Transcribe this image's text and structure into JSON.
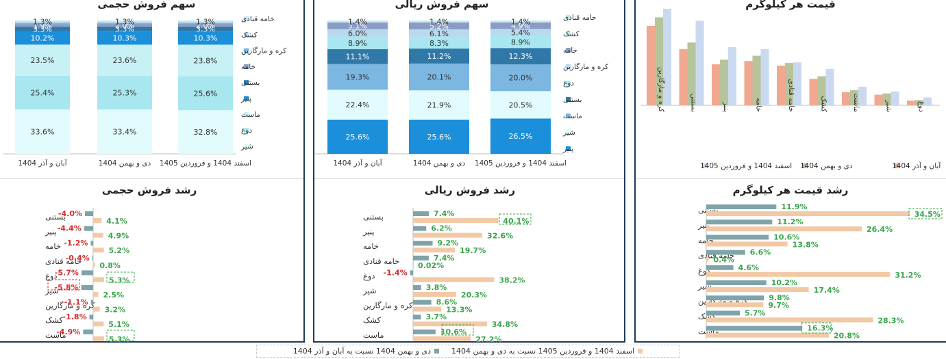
{
  "colors": {
    "leche": "#e2fbfd",
    "mast": "#c8f1f6",
    "doogh": "#a8e7f0",
    "panir": "#1b8fd9",
    "bastani": "#2f78a8",
    "khame": "#8a9cc6",
    "kare": "#7cb7e2",
    "kashk": "#b9d9ee",
    "ghanadi": "#c6e9ef",
    "growth_prev": "#7fa3a8",
    "growth_cur": "#f3c9a5",
    "neg_text": "#d32f2f",
    "pos_text": "#3aa54a",
    "price_a": "#f0a890",
    "price_b": "#b7c39a",
    "price_c": "#c9d9f0"
  },
  "chart_data": [
    {
      "id": "vol_share",
      "type": "bar",
      "stacked": true,
      "title": "سهم فروش حجمی",
      "categories": [
        "آبان و آذر 1404",
        "دی و بهمن 1404",
        "اسفند 1404 و فروردین 1405"
      ],
      "series": [
        {
          "name": "شیر",
          "color_key": "leche",
          "values": [
            33.6,
            33.4,
            32.8
          ]
        },
        {
          "name": "دوغ",
          "color_key": "doogh",
          "values": [
            25.4,
            25.3,
            25.6
          ]
        },
        {
          "name": "ماست",
          "color_key": "mast",
          "values": [
            23.5,
            23.6,
            23.8
          ]
        },
        {
          "name": "پنیر",
          "color_key": "panir",
          "values": [
            10.2,
            10.3,
            10.3
          ]
        },
        {
          "name": "بستنی",
          "color_key": "bastani",
          "values": [
            3.3,
            3.3,
            3.3
          ]
        },
        {
          "name": "خامه",
          "color_key": "khame",
          "values": [
            1.9,
            2.0,
            2.0
          ]
        },
        {
          "name": "کره و مارگارین",
          "color_key": "kare",
          "values": [
            1.0,
            0.8,
            0.8
          ]
        },
        {
          "name": "کشک",
          "color_key": "kashk",
          "values": [
            0.5,
            0.5,
            0.5
          ]
        },
        {
          "name": "خامه قنادی",
          "color_key": "ghanadi",
          "values": [
            1.3,
            1.3,
            1.3
          ]
        }
      ],
      "labels": [
        [
          "33.6%",
          "25.4%",
          "23.5%",
          "10.2%",
          "3.3%",
          "1.9%",
          "",
          "",
          "1.3%"
        ],
        [
          "33.4%",
          "25.3%",
          "23.6%",
          "10.3%",
          "3.3%",
          "2.0%",
          "",
          "",
          "1.3%"
        ],
        [
          "32.8%",
          "25.6%",
          "23.8%",
          "10.3%",
          "3.3%",
          "2.0%",
          "",
          "",
          "1.3%"
        ]
      ],
      "legend": [
        "خامه قنادی",
        "کشک",
        "کره و مارگارین",
        "خامه",
        "بستنی",
        "پنیر",
        "ماست",
        "دوغ",
        "شیر"
      ],
      "legend_position": "right"
    },
    {
      "id": "rial_share",
      "type": "bar",
      "stacked": true,
      "title": "سهم فروش ریالی",
      "categories": [
        "آبان و آذر 1404",
        "دی و بهمن 1404",
        "اسفند 1404 و فروردین 1405"
      ],
      "series": [
        {
          "name": "پنیر",
          "color_key": "panir",
          "values": [
            25.6,
            25.6,
            26.5
          ]
        },
        {
          "name": "شیر",
          "color_key": "leche",
          "values": [
            22.4,
            21.9,
            20.5
          ]
        },
        {
          "name": "ماست",
          "color_key": "kare",
          "values": [
            19.3,
            20.1,
            20.0
          ]
        },
        {
          "name": "بستنی",
          "color_key": "bastani",
          "values": [
            11.1,
            11.2,
            12.3
          ]
        },
        {
          "name": "دوغ",
          "color_key": "doogh",
          "values": [
            8.9,
            8.3,
            8.9
          ]
        },
        {
          "name": "کره و مارگارین",
          "color_key": "kashk",
          "values": [
            6.0,
            6.1,
            5.4
          ]
        },
        {
          "name": "خامه",
          "color_key": "khame",
          "values": [
            5.1,
            5.2,
            4.9
          ]
        },
        {
          "name": "کشک",
          "color_key": "ghanadi",
          "values": [
            1.4,
            1.4,
            1.4
          ]
        }
      ],
      "labels": [
        [
          "25.6%",
          "22.4%",
          "19.3%",
          "11.1%",
          "8.9%",
          "6.0%",
          "5.1%",
          "1.4%"
        ],
        [
          "25.6%",
          "21.9%",
          "20.1%",
          "11.2%",
          "8.3%",
          "6.1%",
          "5.2%",
          "1.4%"
        ],
        [
          "26.5%",
          "20.5%",
          "20.0%",
          "12.3%",
          "8.9%",
          "5.4%",
          "4.9%",
          "1.4%"
        ]
      ],
      "legend": [
        "خامه قنادی",
        "کشک",
        "خامه",
        "کره و مارگارین",
        "دوغ",
        "بستنی",
        "ماست",
        "شیر",
        "پنیر"
      ],
      "legend_position": "right"
    },
    {
      "id": "price_per_kg",
      "type": "bar",
      "title": "قیمت هر کیلوگرم",
      "categories": [
        "کره و مارگارین",
        "بستنی",
        "پنیر",
        "خامه",
        "خامه قنادی",
        "کشک",
        "ماست",
        "شیر",
        "دوغ"
      ],
      "series": [
        {
          "name": "آبان و آذر 1404",
          "color_key": "price_a",
          "values": [
            120,
            85,
            62,
            67,
            60,
            40,
            20,
            16,
            7
          ]
        },
        {
          "name": "دی و بهمن 1404",
          "color_key": "price_b",
          "values": [
            133,
            95,
            69,
            75,
            64,
            44,
            23,
            18,
            8
          ]
        },
        {
          "name": "اسفند 1404 و فروردین 1405",
          "color_key": "price_c",
          "values": [
            146,
            128,
            88,
            85,
            65,
            55,
            28,
            21,
            12
          ]
        }
      ],
      "legend_position": "bottom"
    },
    {
      "id": "vol_growth",
      "type": "bar",
      "orientation": "horizontal",
      "title": "رشد فروش حجمی",
      "categories": [
        "بستنی",
        "پنیر",
        "خامه",
        "خامه قنادی",
        "دوغ",
        "شیر",
        "کره و مارگارین",
        "کشک",
        "ماست"
      ],
      "series": [
        {
          "name": "دی و بهمن 1404 نسبت به آبان و آذر 1404",
          "color_key": "growth_prev",
          "values": [
            -4.0,
            -4.4,
            -1.2,
            -0.4,
            -5.7,
            -5.8,
            -1.1,
            -1.8,
            -4.9
          ]
        },
        {
          "name": "اسفند 1404 و فروردین 1405 نسبت به دی و بهمن 1404",
          "color_key": "growth_cur",
          "values": [
            4.1,
            4.9,
            5.2,
            0.8,
            5.3,
            2.5,
            3.2,
            5.1,
            5.3
          ]
        }
      ],
      "labels_prev": [
        "-4.0%",
        "-4.4%",
        "-1.2%",
        "-0.4%",
        "-5.7%",
        "-5.8%",
        "-1.1%",
        "-1.8%",
        "-4.9%"
      ],
      "labels_cur": [
        "4.1%",
        "4.9%",
        "5.2%",
        "0.8%",
        "5.3%",
        "2.5%",
        "3.2%",
        "5.1%",
        "5.3%"
      ]
    },
    {
      "id": "rial_growth",
      "type": "bar",
      "orientation": "horizontal",
      "title": "رشد فروش ریالی",
      "categories": [
        "بستنی",
        "پنیر",
        "خامه",
        "خامه قنادی",
        "دوغ",
        "شیر",
        "کره و مارگارین",
        "کشک",
        "ماست"
      ],
      "series": [
        {
          "name": "دی و بهمن 1404 نسبت به آبان و آذر 1404",
          "color_key": "growth_prev",
          "values": [
            7.4,
            6.2,
            9.2,
            7.4,
            -1.4,
            3.8,
            8.6,
            3.7,
            10.6
          ]
        },
        {
          "name": "اسفند 1404 و فروردین 1405 نسبت به دی و بهمن 1404",
          "color_key": "growth_cur",
          "values": [
            40.1,
            32.6,
            19.7,
            0.02,
            38.2,
            20.3,
            13.3,
            34.8,
            27.2
          ]
        }
      ],
      "labels_prev": [
        "7.4%",
        "6.2%",
        "9.2%",
        "7.4%",
        "-1.4%",
        "3.8%",
        "8.6%",
        "3.7%",
        "10.6%"
      ],
      "labels_cur": [
        "40.1%",
        "32.6%",
        "19.7%",
        "0.02%",
        "38.2%",
        "20.3%",
        "13.3%",
        "34.8%",
        "27.2%"
      ]
    },
    {
      "id": "price_growth",
      "type": "bar",
      "orientation": "horizontal",
      "title": "رشد قیمت هر کیلوگرم",
      "categories": [
        "بستنی",
        "پنیر",
        "خامه",
        "خامه قنادی",
        "دوغ",
        "شیر",
        "کره و مارگارین",
        "کشک",
        "ماست"
      ],
      "series": [
        {
          "name": "دی و بهمن 1404 نسبت به آبان و آذر 1404",
          "color_key": "growth_prev",
          "values": [
            11.9,
            11.2,
            10.6,
            6.6,
            4.6,
            10.2,
            9.8,
            5.7,
            16.3
          ]
        },
        {
          "name": "اسفند 1404 و فروردین 1405 نسبت به دی و بهمن 1404",
          "color_key": "growth_cur",
          "values": [
            34.5,
            26.4,
            13.8,
            0.4,
            31.2,
            17.4,
            9.7,
            28.3,
            20.8
          ]
        }
      ],
      "labels_prev": [
        "11.9%",
        "11.2%",
        "10.6%",
        "6.6%",
        "4.6%",
        "10.2%",
        "9.8%",
        "5.7%",
        "16.3%"
      ],
      "labels_cur": [
        "34.5%",
        "26.4%",
        "13.8%",
        "0.4%",
        "31.2%",
        "17.4%",
        "9.7%",
        "28.3%",
        "20.8%"
      ]
    }
  ],
  "bottom_legend": {
    "cur": "اسفند 1404 و فروردین 1405 نسبت به دی و بهمن 1404",
    "prev": "دی و بهمن 1404 نسبت به آبان و آذر 1404"
  }
}
